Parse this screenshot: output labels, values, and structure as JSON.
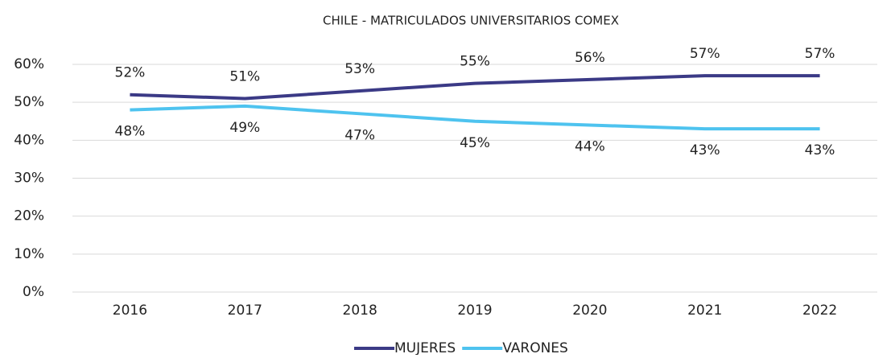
{
  "chart_data": {
    "type": "line",
    "title": "CHILE - MATRICULADOS UNIVERSITARIOS COMEX",
    "categories": [
      "2016",
      "2017",
      "2018",
      "2019",
      "2020",
      "2021",
      "2022"
    ],
    "series": [
      {
        "name": "MUJERES",
        "color": "#3b3a86",
        "values": [
          52,
          51,
          53,
          55,
          56,
          57,
          57
        ],
        "value_labels": [
          "52%",
          "51%",
          "53%",
          "55%",
          "56%",
          "57%",
          "57%"
        ]
      },
      {
        "name": "VARONES",
        "color": "#4ec3ef",
        "values": [
          48,
          49,
          47,
          45,
          44,
          43,
          43
        ],
        "value_labels": [
          "48%",
          "49%",
          "47%",
          "45%",
          "44%",
          "43%",
          "43%"
        ]
      }
    ],
    "ylim": [
      0,
      60
    ],
    "yticks": [
      {
        "value": 0,
        "label": "0%"
      },
      {
        "value": 10,
        "label": "10%"
      },
      {
        "value": 20,
        "label": "20%"
      },
      {
        "value": 30,
        "label": "30%"
      },
      {
        "value": 40,
        "label": "40%"
      },
      {
        "value": 50,
        "label": "50%"
      },
      {
        "value": 60,
        "label": "60%"
      }
    ],
    "grid": true,
    "legend": "bottom"
  }
}
